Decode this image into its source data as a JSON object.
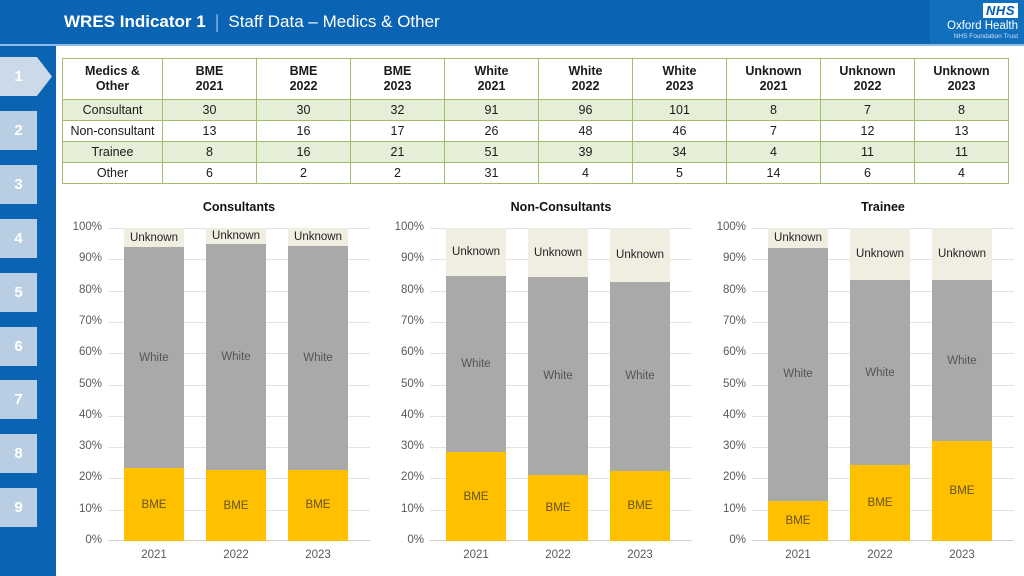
{
  "slide": {
    "title_bold": "WRES Indicator 1",
    "title_separator": "|",
    "title_regular": "Staff Data – Medics & Other"
  },
  "logo": {
    "nhs": "NHS",
    "org": "Oxford Health",
    "sub": "NHS Foundation Trust"
  },
  "sidebar": {
    "items": [
      "1",
      "2",
      "3",
      "4",
      "5",
      "6",
      "7",
      "8",
      "9"
    ]
  },
  "table": {
    "headers": [
      {
        "l1": "Medics &",
        "l2": "Other"
      },
      {
        "l1": "BME",
        "l2": "2021"
      },
      {
        "l1": "BME",
        "l2": "2022"
      },
      {
        "l1": "BME",
        "l2": "2023"
      },
      {
        "l1": "White",
        "l2": "2021"
      },
      {
        "l1": "White",
        "l2": "2022"
      },
      {
        "l1": "White",
        "l2": "2023"
      },
      {
        "l1": "Unknown",
        "l2": "2021"
      },
      {
        "l1": "Unknown",
        "l2": "2022"
      },
      {
        "l1": "Unknown",
        "l2": "2023"
      }
    ],
    "rows": [
      {
        "label": "Consultant",
        "values": [
          30,
          30,
          32,
          91,
          96,
          101,
          8,
          7,
          8
        ]
      },
      {
        "label": "Non-consultant",
        "values": [
          13,
          16,
          17,
          26,
          48,
          46,
          7,
          12,
          13
        ]
      },
      {
        "label": "Trainee",
        "values": [
          8,
          16,
          21,
          51,
          39,
          34,
          4,
          11,
          11
        ]
      },
      {
        "label": "Other",
        "values": [
          6,
          2,
          2,
          31,
          4,
          5,
          14,
          6,
          4
        ]
      }
    ]
  },
  "chart_axis": {
    "y_ticks": [
      "0%",
      "10%",
      "20%",
      "30%",
      "40%",
      "50%",
      "60%",
      "70%",
      "80%",
      "90%",
      "100%"
    ]
  },
  "chart_data": [
    {
      "type": "bar",
      "stacked": true,
      "title": "Consultants",
      "categories": [
        "2021",
        "2022",
        "2023"
      ],
      "series": [
        {
          "name": "BME",
          "counts": [
            30,
            30,
            32
          ],
          "percent": [
            23.3,
            22.6,
            22.7
          ]
        },
        {
          "name": "White",
          "counts": [
            91,
            96,
            101
          ],
          "percent": [
            70.5,
            72.2,
            71.6
          ]
        },
        {
          "name": "Unknown",
          "counts": [
            8,
            7,
            8
          ],
          "percent": [
            6.2,
            5.2,
            5.7
          ]
        }
      ],
      "ylim": [
        0,
        100
      ],
      "grid": true,
      "legend": "labels-in-bars"
    },
    {
      "type": "bar",
      "stacked": true,
      "title": "Non-Consultants",
      "categories": [
        "2021",
        "2022",
        "2023"
      ],
      "series": [
        {
          "name": "BME",
          "counts": [
            13,
            16,
            17
          ],
          "percent": [
            28.3,
            21.1,
            22.4
          ]
        },
        {
          "name": "White",
          "counts": [
            26,
            48,
            46
          ],
          "percent": [
            56.5,
            63.2,
            60.5
          ]
        },
        {
          "name": "Unknown",
          "counts": [
            7,
            12,
            13
          ],
          "percent": [
            15.2,
            15.7,
            17.1
          ]
        }
      ],
      "ylim": [
        0,
        100
      ],
      "grid": true,
      "legend": "labels-in-bars"
    },
    {
      "type": "bar",
      "stacked": true,
      "title": "Trainee",
      "categories": [
        "2021",
        "2022",
        "2023"
      ],
      "series": [
        {
          "name": "BME",
          "counts": [
            8,
            16,
            21
          ],
          "percent": [
            12.7,
            24.2,
            31.8
          ]
        },
        {
          "name": "White",
          "counts": [
            51,
            39,
            34
          ],
          "percent": [
            81.0,
            59.1,
            51.5
          ]
        },
        {
          "name": "Unknown",
          "counts": [
            4,
            11,
            11
          ],
          "percent": [
            6.3,
            16.7,
            16.7
          ]
        }
      ],
      "ylim": [
        0,
        100
      ],
      "grid": true,
      "legend": "labels-in-bars"
    }
  ],
  "colors": {
    "header_blue": "#0B63B4",
    "logo_panel_blue": "#1170BE",
    "underline_blue": "#8FB9E4",
    "tab_fill": "#B9CDE3",
    "tab_active_fill": "#CBD9E9",
    "table_border_green": "#A3BD6B",
    "table_row_green": "#E5EED6",
    "bme_yellow": "#FFC000",
    "white_gray": "#A9A9A9",
    "unknown_cream": "#F0EDE1"
  }
}
